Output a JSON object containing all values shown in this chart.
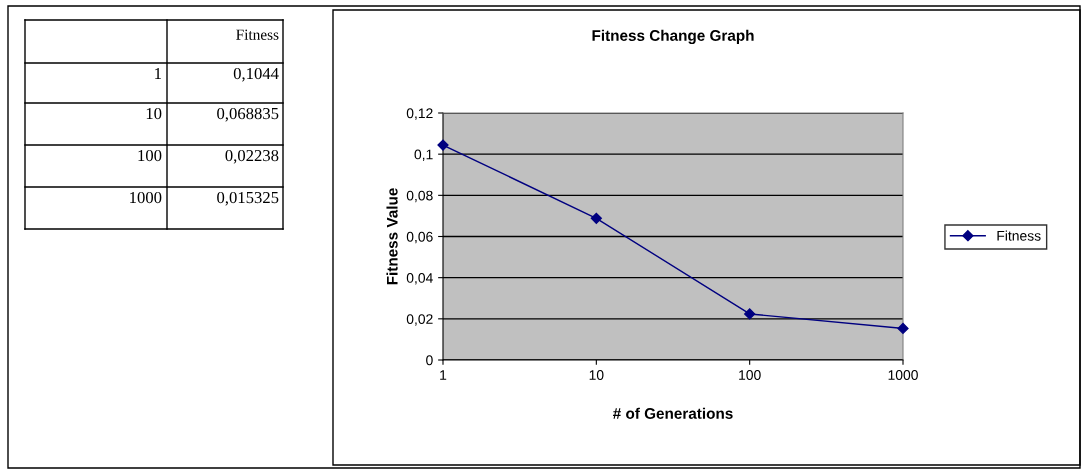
{
  "chart_data": {
    "type": "line",
    "title": "Fitness Change Graph",
    "xlabel": "# of Generations",
    "ylabel": "Fitness Value",
    "categories": [
      "1",
      "10",
      "100",
      "1000"
    ],
    "series": [
      {
        "name": "Fitness",
        "color": "#000080",
        "values": [
          0.1044,
          0.068835,
          0.02238,
          0.015325
        ]
      }
    ],
    "annotations": [
      "Fitness",
      "1",
      "0,1044",
      "10",
      "0,068835",
      "100",
      "0,02238",
      "1000",
      "0,015325"
    ],
    "ylim": [
      0,
      0.12
    ],
    "yticks": [
      {
        "value": 0,
        "label": "0"
      },
      {
        "value": 0.02,
        "label": "0,02"
      },
      {
        "value": 0.04,
        "label": "0,04"
      },
      {
        "value": 0.06,
        "label": "0,06"
      },
      {
        "value": 0.08,
        "label": "0,08"
      },
      {
        "value": 0.1,
        "label": "0,1"
      },
      {
        "value": 0.12,
        "label": "0,12"
      }
    ],
    "grid": "y",
    "legend": "right",
    "marker": "diamond",
    "line_style": "solid"
  }
}
